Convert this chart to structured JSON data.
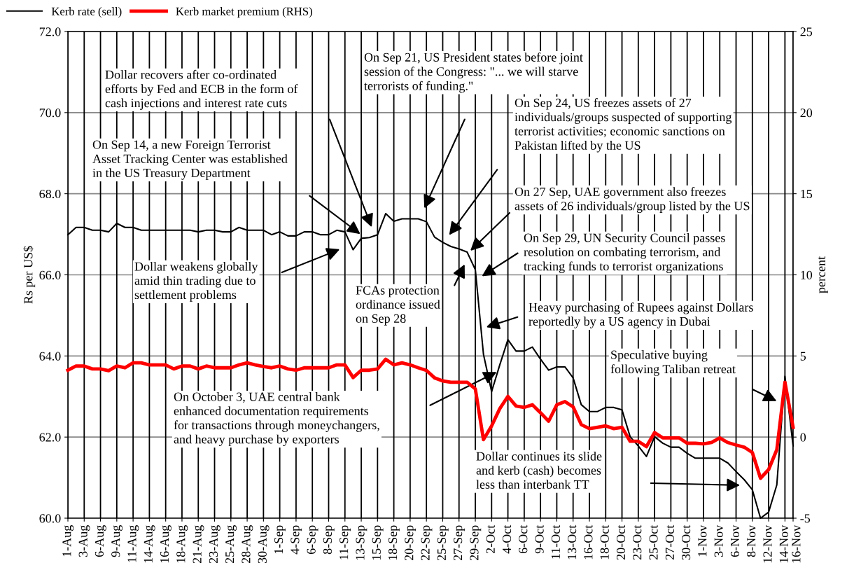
{
  "chart_data": {
    "type": "line",
    "ylabel": "Rs per US$",
    "y2label": "percent",
    "categories": [
      "1-Aug",
      null,
      "3-Aug",
      null,
      "6-Aug",
      null,
      "9-Aug",
      null,
      "11-Aug",
      null,
      "14-Aug",
      null,
      "16-Aug",
      null,
      "18-Aug",
      null,
      "21-Aug",
      null,
      "23-Aug",
      null,
      "25-Aug",
      null,
      "28-Aug",
      null,
      "30-Aug",
      null,
      "1-Sep",
      null,
      "4-Sep",
      null,
      "6-Sep",
      null,
      "8-Sep",
      null,
      "11-Sep",
      null,
      "13-Sep",
      null,
      "15-Sep",
      null,
      "18-Sep",
      null,
      "20-Sep",
      null,
      "22-Sep",
      null,
      "25-Sep",
      null,
      "27-Sep",
      null,
      "29-Sep",
      null,
      "2-Oct",
      null,
      "4-Oct",
      null,
      "6-Oct",
      null,
      "9-Oct",
      null,
      "11-Oct",
      null,
      "13-Oct",
      null,
      "16-Oct",
      null,
      "18-Oct",
      null,
      "20-Oct",
      null,
      "23-Oct",
      null,
      "25-Oct",
      null,
      "27-Oct",
      null,
      "30-Oct",
      null,
      "1-Nov",
      null,
      "3-Nov",
      null,
      "6-Nov",
      null,
      "8-Nov",
      null,
      "12-Nov",
      null,
      "14-Nov",
      "16-Nov"
    ],
    "series": [
      {
        "name": "Kerb rate (sell)",
        "color": "#000000",
        "values": [
          66.99,
          67.17,
          67.17,
          67.1,
          67.1,
          67.06,
          67.27,
          67.17,
          67.17,
          67.1,
          67.1,
          67.1,
          67.1,
          67.1,
          67.1,
          67.1,
          67.06,
          67.1,
          67.1,
          67.06,
          67.06,
          67.17,
          67.1,
          67.1,
          67.1,
          66.99,
          67.06,
          66.96,
          66.96,
          67.06,
          67.06,
          66.99,
          66.99,
          67.1,
          67.06,
          66.62,
          66.9,
          66.92,
          66.99,
          67.51,
          67.32,
          67.38,
          67.38,
          67.38,
          67.31,
          66.93,
          66.8,
          66.7,
          66.64,
          66.56,
          66.13,
          64.04,
          63.12,
          63.78,
          64.4,
          64.12,
          64.12,
          64.22,
          63.92,
          63.65,
          63.73,
          63.73,
          63.46,
          62.8,
          62.63,
          62.63,
          62.73,
          62.73,
          62.67,
          62.01,
          61.78,
          61.52,
          62.01,
          61.85,
          61.75,
          61.75,
          61.6,
          61.48,
          61.48,
          61.48,
          61.48,
          61.36,
          61.15,
          60.95,
          60.7,
          60.0,
          60.15,
          60.82,
          63.5,
          61.78
        ]
      },
      {
        "name": "Kerb market premium (RHS)",
        "color": "#ff0000",
        "axis": "y2",
        "values": [
          4.12,
          4.38,
          4.38,
          4.2,
          4.2,
          4.09,
          4.38,
          4.27,
          4.58,
          4.58,
          4.45,
          4.45,
          4.45,
          4.2,
          4.38,
          4.38,
          4.2,
          4.38,
          4.27,
          4.27,
          4.27,
          4.45,
          4.58,
          4.45,
          4.35,
          4.27,
          4.38,
          4.2,
          4.12,
          4.27,
          4.27,
          4.27,
          4.27,
          4.45,
          4.45,
          3.67,
          4.12,
          4.12,
          4.2,
          4.8,
          4.45,
          4.58,
          4.45,
          4.27,
          4.11,
          3.65,
          3.46,
          3.38,
          3.38,
          3.38,
          2.97,
          -0.16,
          0.69,
          1.75,
          2.51,
          1.91,
          1.83,
          1.99,
          1.5,
          0.98,
          1.99,
          2.19,
          1.86,
          0.77,
          0.52,
          0.6,
          0.69,
          0.52,
          0.6,
          -0.26,
          -0.26,
          -0.59,
          0.28,
          -0.05,
          -0.05,
          -0.05,
          -0.38,
          -0.38,
          -0.42,
          -0.33,
          -0.05,
          -0.34,
          -0.49,
          -0.62,
          -0.95,
          -2.54,
          -2.0,
          -0.78,
          3.38,
          0.6
        ]
      }
    ],
    "ylim": [
      60,
      72
    ],
    "yticks": [
      {
        "value": 60,
        "label": "60.0"
      },
      {
        "value": 62,
        "label": "62.0"
      },
      {
        "value": 64,
        "label": "64.0"
      },
      {
        "value": 66,
        "label": "66.0"
      },
      {
        "value": 68,
        "label": "68.0"
      },
      {
        "value": 70,
        "label": "70.0"
      },
      {
        "value": 72,
        "label": "72.0"
      }
    ],
    "y2lim": [
      -5,
      25
    ],
    "y2ticks": [
      -5,
      0,
      5,
      10,
      15,
      20,
      25
    ],
    "grid": true,
    "legend": "top left",
    "marker": "none",
    "line_style": "solid",
    "annotations": [
      "Dollar recovers after co-ordinated\nefforts by Fed and ECB in the form of\ncash injections and interest rate cuts",
      "On Sep 14, a new Foreign Terrorist\nAsset Tracking Center was established\nin the US Treasury Department",
      "On Sep 21, US President states before joint\nsession of the Congress: \"... we will starve\nterrorists of funding.\"",
      "On Sep 24, US freezes assets of 27\nindividuals/groups suspected of supporting\nterrorist activities; economic sanctions on\nPakistan lifted by the US",
      "On 27 Sep, UAE government also freezes\nassets of 26 individuals/group listed by the US",
      "On Sep 29, UN Security Council passes\nresolution on combating terrorism, and\ntracking funds to terrorist organizations",
      "FCAs protection\nordinance issued\non Sep 28",
      "Dollar weakens globally\namid thin trading due to\nsettlement problems",
      "Heavy purchasing of Rupees against Dollars\nreportedly by a US agency in Dubai",
      "On October 3, UAE central bank\nenhanced documentation requirements\nfor transactions through moneychangers,\nand heavy purchase by exporters",
      "Speculative buying\nfollowing Taliban retreat",
      "Dollar continues its slide\nand kerb (cash) becomes\nless than interbank TT"
    ]
  }
}
